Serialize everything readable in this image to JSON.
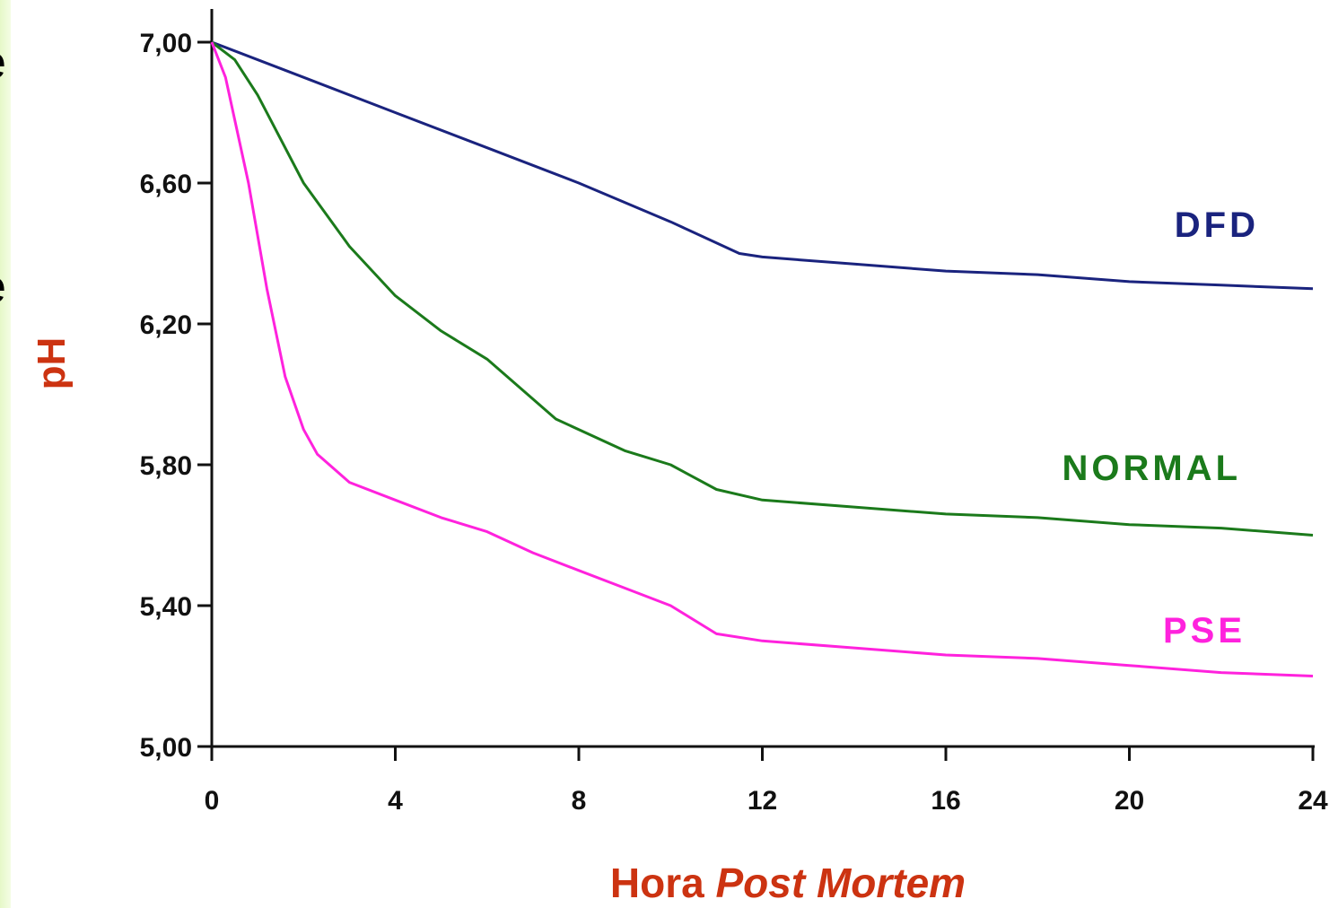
{
  "chart_data": {
    "type": "line",
    "xlabel": "Hora",
    "xlabel_italic": "Post Mortem",
    "ylabel": "pH",
    "xlim": [
      0,
      24
    ],
    "ylim": [
      5.0,
      7.0
    ],
    "x_ticks": [
      0,
      4,
      8,
      12,
      16,
      20,
      24
    ],
    "x_tick_labels": [
      "0",
      "4",
      "8",
      "12",
      "16",
      "20",
      "24"
    ],
    "y_ticks": [
      5.0,
      5.4,
      5.8,
      6.2,
      6.6,
      7.0
    ],
    "y_tick_labels": [
      "5,00",
      "5,40",
      "5,80",
      "6,20",
      "6,60",
      "7,00"
    ],
    "grid": false,
    "title_color": "#cc3311",
    "series": [
      {
        "name": "DFD",
        "color": "#1a237e",
        "x": [
          0,
          2,
          4,
          6,
          8,
          10,
          11.5,
          12,
          14,
          16,
          18,
          20,
          22,
          24
        ],
        "y": [
          7.0,
          6.9,
          6.8,
          6.7,
          6.6,
          6.49,
          6.4,
          6.39,
          6.37,
          6.35,
          6.34,
          6.32,
          6.31,
          6.3
        ]
      },
      {
        "name": "NORMAL",
        "color": "#1b7a1b",
        "x": [
          0,
          0.5,
          1,
          2,
          3,
          4,
          5,
          6,
          7.5,
          9,
          10,
          11,
          12,
          14,
          16,
          18,
          20,
          22,
          24
        ],
        "y": [
          7.0,
          6.95,
          6.85,
          6.6,
          6.42,
          6.28,
          6.18,
          6.1,
          5.93,
          5.84,
          5.8,
          5.73,
          5.7,
          5.68,
          5.66,
          5.65,
          5.63,
          5.62,
          5.6
        ]
      },
      {
        "name": "PSE",
        "color": "#ff22dd",
        "x": [
          0,
          0.3,
          0.8,
          1.2,
          1.6,
          2,
          2.3,
          3,
          4,
          5,
          6,
          7,
          8,
          9,
          10,
          11,
          12,
          14,
          16,
          18,
          20,
          22,
          24
        ],
        "y": [
          7.0,
          6.9,
          6.6,
          6.3,
          6.05,
          5.9,
          5.83,
          5.75,
          5.7,
          5.65,
          5.61,
          5.55,
          5.5,
          5.45,
          5.4,
          5.32,
          5.3,
          5.28,
          5.26,
          5.25,
          5.23,
          5.21,
          5.2
        ]
      }
    ]
  }
}
